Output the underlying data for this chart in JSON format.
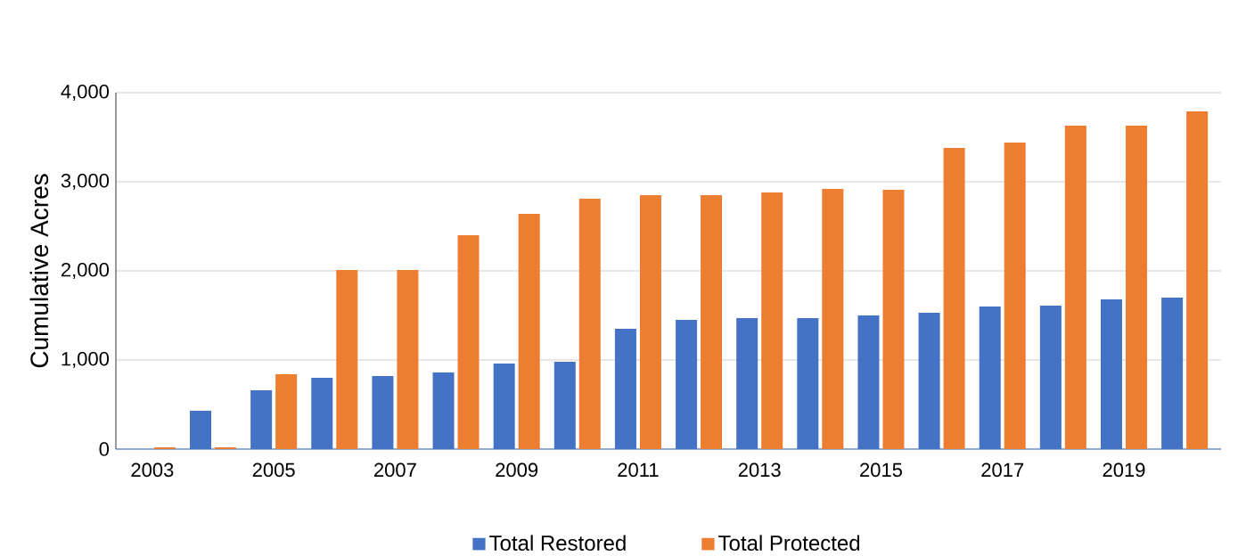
{
  "chart_data": {
    "type": "bar",
    "ylabel": "Cumulative Acres",
    "categories": [
      "2003",
      null,
      "2005",
      null,
      "2007",
      null,
      "2009",
      null,
      "2011",
      null,
      "2013",
      null,
      "2015",
      null,
      "2017",
      null,
      "2019",
      null
    ],
    "series": [
      {
        "name": "Total Restored",
        "color": "#4472c4",
        "values": [
          0,
          430,
          660,
          800,
          820,
          860,
          960,
          980,
          1350,
          1450,
          1470,
          1470,
          1500,
          1530,
          1600,
          1610,
          1680,
          1700
        ]
      },
      {
        "name": "Total Protected",
        "color": "#ed7d31",
        "values": [
          20,
          20,
          840,
          2010,
          2010,
          2400,
          2640,
          2810,
          2850,
          2850,
          2880,
          2920,
          2910,
          3380,
          3440,
          3630,
          3630,
          3790
        ]
      }
    ],
    "ylim": [
      0,
      4000
    ],
    "yticks": [
      0,
      {
        "value": 1000,
        "label": "1,000"
      },
      {
        "value": 2000,
        "label": "2,000"
      },
      {
        "value": 3000,
        "label": "3,000"
      },
      {
        "value": 4000,
        "label": "4,000"
      }
    ],
    "grid": "y",
    "legend": "bottom"
  }
}
